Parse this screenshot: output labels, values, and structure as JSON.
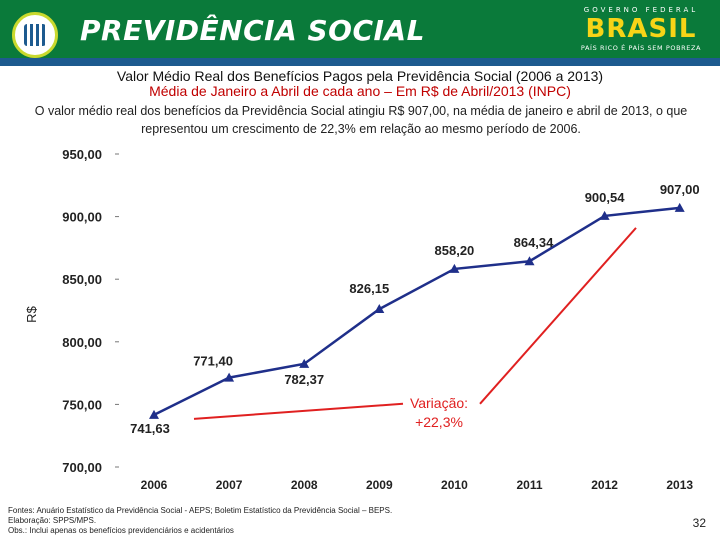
{
  "header": {
    "brand_title": "PREVIDÊNCIA SOCIAL",
    "gov_top": "GOVERNO FEDERAL",
    "gov_brasil": "BRASIL",
    "gov_slogan": "PAÍS RICO É PAÍS SEM POBREZA"
  },
  "colors": {
    "header_green": "#0a7a3a",
    "series_line": "#1f2f8a",
    "variation_red": "#e02020",
    "subtitle_red": "#c00000"
  },
  "chart_data": {
    "type": "line",
    "title": "Valor Médio Real dos Benefícios Pagos pela Previdência Social (2006 a 2013)",
    "subtitle": "Média de Janeiro a Abril de cada ano – Em R$ de Abril/2013 (INPC)",
    "ylabel": "R$",
    "xlabel": "",
    "categories": [
      "2006",
      "2007",
      "2008",
      "2009",
      "2010",
      "2011",
      "2012",
      "2013"
    ],
    "values": [
      741.63,
      771.4,
      782.37,
      826.15,
      858.2,
      864.34,
      900.54,
      907.0
    ],
    "value_labels": [
      "741,63",
      "771,40",
      "782,37",
      "826,15",
      "858,20",
      "864,34",
      "900,54",
      "907,00"
    ],
    "yticks": [
      700,
      750,
      800,
      850,
      900,
      950
    ],
    "ytick_labels": [
      "700,00",
      "750,00",
      "800,00",
      "850,00",
      "900,00",
      "950,00"
    ],
    "ylim": [
      700,
      950
    ],
    "grid": false,
    "legend": "none",
    "annotation": {
      "line1": "Variação:",
      "line2": "+22,3%"
    }
  },
  "intro_text": "O valor médio real dos benefícios da Previdência Social atingiu R$ 907,00, na média de janeiro e abril de 2013, o que representou um crescimento de 22,3% em relação ao mesmo período de 2006.",
  "footer": {
    "line1": "Fontes: Anuário Estatístico da Previdência Social - AEPS; Boletim Estatístico da Previdência Social – BEPS.",
    "line2": "Elaboração: SPPS/MPS.",
    "line3": "Obs.: Inclui apenas os benefícios previdenciários e acidentários"
  },
  "page_number": "32"
}
